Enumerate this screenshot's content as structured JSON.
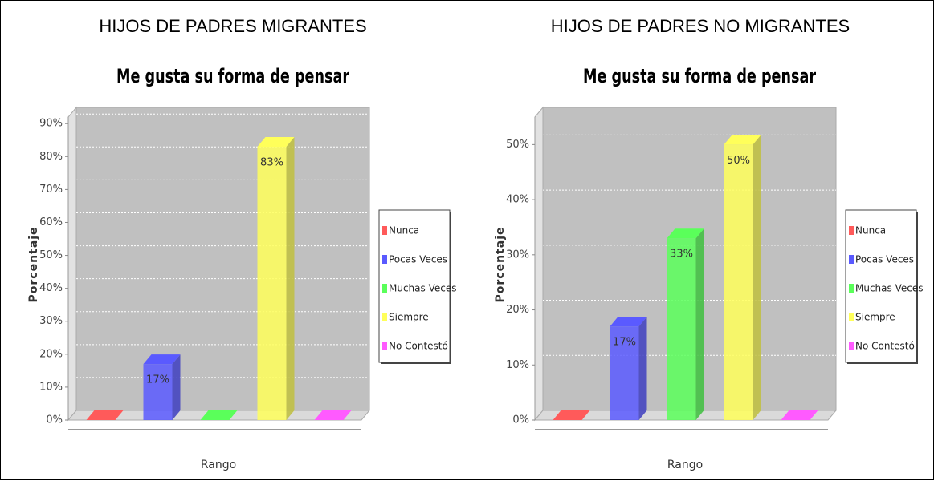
{
  "table": {
    "headers": [
      "HIJOS DE PADRES MIGRANTES",
      "HIJOS DE PADRES NO MIGRANTES"
    ]
  },
  "chart_data": [
    {
      "type": "bar3d",
      "title": "Me gusta su forma de pensar",
      "x_label": "Rango",
      "y_label": "Porcentaje",
      "categories": [
        "Nunca",
        "Pocas Veces",
        "Muchas Veces",
        "Siempre",
        "No Contestó"
      ],
      "values": [
        0,
        17,
        0,
        83,
        0
      ],
      "value_labels": [
        null,
        "17%",
        null,
        "83%",
        null
      ],
      "colors": [
        "#ff5a5a",
        "#5a5aff",
        "#5aff5a",
        "#ffff5a",
        "#ff5aff"
      ],
      "ylim": [
        0,
        92
      ],
      "yticks": [
        {
          "value": 0,
          "label": "0%"
        },
        {
          "value": 10,
          "label": "10%"
        },
        {
          "value": 20,
          "label": "20%"
        },
        {
          "value": 30,
          "label": "30%"
        },
        {
          "value": 40,
          "label": "40%"
        },
        {
          "value": 50,
          "label": "50%"
        },
        {
          "value": 60,
          "label": "60%"
        },
        {
          "value": 70,
          "label": "70%"
        },
        {
          "value": 80,
          "label": "80%"
        },
        {
          "value": 90,
          "label": "90%"
        }
      ],
      "grid": true,
      "legend": "right"
    },
    {
      "type": "bar3d",
      "title": "Me gusta su forma de pensar",
      "x_label": "Rango",
      "y_label": "Porcentaje",
      "categories": [
        "Nunca",
        "Pocas Veces",
        "Muchas Veces",
        "Siempre",
        "No Contestó"
      ],
      "values": [
        0,
        17,
        33,
        50,
        0
      ],
      "value_labels": [
        null,
        "17%",
        "33%",
        "50%",
        null
      ],
      "colors": [
        "#ff5a5a",
        "#5a5aff",
        "#5aff5a",
        "#ffff5a",
        "#ff5aff"
      ],
      "ylim": [
        0,
        55
      ],
      "yticks": [
        {
          "value": 0,
          "label": "0%"
        },
        {
          "value": 10,
          "label": "10%"
        },
        {
          "value": 20,
          "label": "20%"
        },
        {
          "value": 30,
          "label": "30%"
        },
        {
          "value": 40,
          "label": "40%"
        },
        {
          "value": 50,
          "label": "50%"
        }
      ],
      "grid": true,
      "legend": "right"
    }
  ]
}
